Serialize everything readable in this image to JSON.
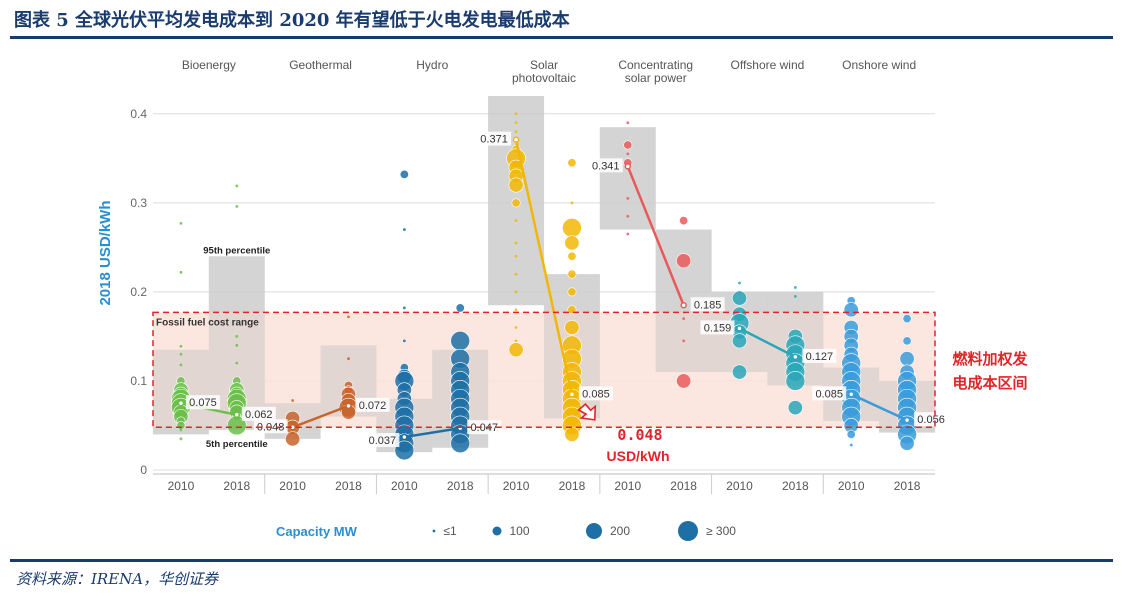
{
  "header": {
    "title": "图表 5   全球光伏平均发电成本到 2020 年有望低于火电发电最低成本"
  },
  "footer": {
    "source": "资料来源：IRENA，华创证券"
  },
  "colors": {
    "bioenergy": "#6cbf4a",
    "geothermal": "#c8642a",
    "hydro": "#1d6fa5",
    "solar_pv": "#f2b705",
    "csp": "#e85a5a",
    "offshore_wind": "#2aa6b8",
    "onshore_wind": "#3a9bd9",
    "range_box": "#c9c9c9",
    "fossil_band": "#fbe3d9",
    "fossil_border": "#e0242a",
    "annotation_red": "#e0242a",
    "axis_label": "#2a8fcf"
  },
  "chart_data": {
    "type": "scatter",
    "ylabel": "2018 USD/kWh",
    "ylim": [
      0,
      0.42
    ],
    "yticks": [
      "0",
      "0.1",
      "0.2",
      "0.3",
      "0.4"
    ],
    "groups": [
      {
        "name": "Bioenergy",
        "color_key": "bioenergy",
        "y2010": {
          "label": "2010",
          "avg": 0.075,
          "p5": 0.04,
          "p95": 0.135,
          "points": [
            {
              "y": 0.277,
              "s": 1
            },
            {
              "y": 0.222,
              "s": 1
            },
            {
              "y": 0.139,
              "s": 1
            },
            {
              "y": 0.13,
              "s": 1
            },
            {
              "y": 0.118,
              "s": 1
            },
            {
              "y": 0.1,
              "s": 2
            },
            {
              "y": 0.09,
              "s": 3
            },
            {
              "y": 0.085,
              "s": 3
            },
            {
              "y": 0.08,
              "s": 4
            },
            {
              "y": 0.075,
              "s": 4
            },
            {
              "y": 0.07,
              "s": 4
            },
            {
              "y": 0.065,
              "s": 3
            },
            {
              "y": 0.06,
              "s": 3
            },
            {
              "y": 0.055,
              "s": 2
            },
            {
              "y": 0.05,
              "s": 2
            },
            {
              "y": 0.045,
              "s": 1
            },
            {
              "y": 0.035,
              "s": 1
            }
          ]
        },
        "y2018": {
          "label": "2018",
          "avg": 0.062,
          "p5": 0.045,
          "p95": 0.24,
          "points": [
            {
              "y": 0.319,
              "s": 1
            },
            {
              "y": 0.296,
              "s": 1
            },
            {
              "y": 0.15,
              "s": 1
            },
            {
              "y": 0.14,
              "s": 1
            },
            {
              "y": 0.12,
              "s": 1
            },
            {
              "y": 0.1,
              "s": 2
            },
            {
              "y": 0.09,
              "s": 3
            },
            {
              "y": 0.085,
              "s": 3
            },
            {
              "y": 0.08,
              "s": 4
            },
            {
              "y": 0.075,
              "s": 4
            },
            {
              "y": 0.07,
              "s": 3
            },
            {
              "y": 0.065,
              "s": 3
            },
            {
              "y": 0.06,
              "s": 2
            },
            {
              "y": 0.05,
              "s": 4
            }
          ]
        },
        "percentile_95_label": "95th percentile",
        "percentile_5_label": "5th percentile"
      },
      {
        "name": "Geothermal",
        "color_key": "geothermal",
        "y2010": {
          "label": "2010",
          "avg": 0.048,
          "p5": 0.035,
          "p95": 0.075,
          "points": [
            {
              "y": 0.078,
              "s": 1
            },
            {
              "y": 0.058,
              "s": 3
            },
            {
              "y": 0.048,
              "s": 3
            },
            {
              "y": 0.035,
              "s": 3
            }
          ]
        },
        "y2018": {
          "label": "2018",
          "avg": 0.072,
          "p5": 0.06,
          "p95": 0.14,
          "points": [
            {
              "y": 0.172,
              "s": 1
            },
            {
              "y": 0.125,
              "s": 1
            },
            {
              "y": 0.095,
              "s": 2
            },
            {
              "y": 0.09,
              "s": 2
            },
            {
              "y": 0.085,
              "s": 3
            },
            {
              "y": 0.078,
              "s": 3
            },
            {
              "y": 0.07,
              "s": 4
            },
            {
              "y": 0.065,
              "s": 3
            }
          ]
        }
      },
      {
        "name": "Hydro",
        "color_key": "hydro",
        "y2010": {
          "label": "2010",
          "avg": 0.037,
          "p5": 0.02,
          "p95": 0.08,
          "points": [
            {
              "y": 0.332,
              "s": 2
            },
            {
              "y": 0.27,
              "s": 1
            },
            {
              "y": 0.182,
              "s": 1
            },
            {
              "y": 0.145,
              "s": 1
            },
            {
              "y": 0.115,
              "s": 2
            },
            {
              "y": 0.105,
              "s": 3
            },
            {
              "y": 0.1,
              "s": 4
            },
            {
              "y": 0.09,
              "s": 3
            },
            {
              "y": 0.08,
              "s": 3
            },
            {
              "y": 0.07,
              "s": 4
            },
            {
              "y": 0.06,
              "s": 4
            },
            {
              "y": 0.05,
              "s": 4
            },
            {
              "y": 0.04,
              "s": 4
            },
            {
              "y": 0.03,
              "s": 4
            },
            {
              "y": 0.022,
              "s": 4
            }
          ]
        },
        "y2018": {
          "label": "2018",
          "avg": 0.047,
          "p5": 0.025,
          "p95": 0.135,
          "points": [
            {
              "y": 0.182,
              "s": 2
            },
            {
              "y": 0.145,
              "s": 4
            },
            {
              "y": 0.125,
              "s": 4
            },
            {
              "y": 0.11,
              "s": 4
            },
            {
              "y": 0.1,
              "s": 4
            },
            {
              "y": 0.09,
              "s": 4
            },
            {
              "y": 0.08,
              "s": 4
            },
            {
              "y": 0.07,
              "s": 4
            },
            {
              "y": 0.06,
              "s": 4
            },
            {
              "y": 0.05,
              "s": 4
            },
            {
              "y": 0.04,
              "s": 4
            },
            {
              "y": 0.03,
              "s": 4
            }
          ]
        }
      },
      {
        "name": "Solar\nphotovoltaic",
        "color_key": "solar_pv",
        "y2010": {
          "label": "2010",
          "avg": 0.371,
          "p5": 0.185,
          "p95": 0.42,
          "points": [
            {
              "y": 0.4,
              "s": 1
            },
            {
              "y": 0.39,
              "s": 1
            },
            {
              "y": 0.38,
              "s": 1
            },
            {
              "y": 0.36,
              "s": 2
            },
            {
              "y": 0.35,
              "s": 4
            },
            {
              "y": 0.34,
              "s": 3
            },
            {
              "y": 0.33,
              "s": 3
            },
            {
              "y": 0.32,
              "s": 3
            },
            {
              "y": 0.3,
              "s": 2
            },
            {
              "y": 0.28,
              "s": 1
            },
            {
              "y": 0.255,
              "s": 1
            },
            {
              "y": 0.24,
              "s": 1
            },
            {
              "y": 0.22,
              "s": 1
            },
            {
              "y": 0.2,
              "s": 1
            },
            {
              "y": 0.18,
              "s": 1
            },
            {
              "y": 0.16,
              "s": 1
            },
            {
              "y": 0.145,
              "s": 1
            },
            {
              "y": 0.135,
              "s": 3
            }
          ]
        },
        "y2018": {
          "label": "2018",
          "avg": 0.085,
          "p5": 0.058,
          "p95": 0.22,
          "points": [
            {
              "y": 0.345,
              "s": 2
            },
            {
              "y": 0.3,
              "s": 1
            },
            {
              "y": 0.272,
              "s": 4
            },
            {
              "y": 0.255,
              "s": 3
            },
            {
              "y": 0.24,
              "s": 2
            },
            {
              "y": 0.22,
              "s": 2
            },
            {
              "y": 0.2,
              "s": 2
            },
            {
              "y": 0.18,
              "s": 2
            },
            {
              "y": 0.16,
              "s": 3
            },
            {
              "y": 0.14,
              "s": 4
            },
            {
              "y": 0.125,
              "s": 4
            },
            {
              "y": 0.11,
              "s": 4
            },
            {
              "y": 0.1,
              "s": 4
            },
            {
              "y": 0.09,
              "s": 4
            },
            {
              "y": 0.08,
              "s": 4
            },
            {
              "y": 0.07,
              "s": 4
            },
            {
              "y": 0.06,
              "s": 4
            },
            {
              "y": 0.05,
              "s": 4
            },
            {
              "y": 0.04,
              "s": 3
            }
          ]
        }
      },
      {
        "name": "Concentrating\nsolar power",
        "color_key": "csp",
        "y2010": {
          "label": "2010",
          "avg": 0.341,
          "p5": 0.27,
          "p95": 0.385,
          "points": [
            {
              "y": 0.39,
              "s": 1
            },
            {
              "y": 0.365,
              "s": 2
            },
            {
              "y": 0.355,
              "s": 1
            },
            {
              "y": 0.345,
              "s": 2
            },
            {
              "y": 0.305,
              "s": 1
            },
            {
              "y": 0.285,
              "s": 1
            },
            {
              "y": 0.265,
              "s": 1
            }
          ]
        },
        "y2018": {
          "label": "2018",
          "avg": 0.185,
          "p5": 0.11,
          "p95": 0.27,
          "points": [
            {
              "y": 0.28,
              "s": 2
            },
            {
              "y": 0.235,
              "s": 3
            },
            {
              "y": 0.185,
              "s": 1
            },
            {
              "y": 0.17,
              "s": 1
            },
            {
              "y": 0.145,
              "s": 1
            },
            {
              "y": 0.1,
              "s": 3
            }
          ]
        }
      },
      {
        "name": "Offshore wind",
        "color_key": "offshore_wind",
        "y2010": {
          "label": "2010",
          "avg": 0.159,
          "p5": 0.11,
          "p95": 0.2,
          "points": [
            {
              "y": 0.21,
              "s": 1
            },
            {
              "y": 0.2,
              "s": 1
            },
            {
              "y": 0.193,
              "s": 3
            },
            {
              "y": 0.175,
              "s": 3
            },
            {
              "y": 0.165,
              "s": 4
            },
            {
              "y": 0.155,
              "s": 3
            },
            {
              "y": 0.145,
              "s": 3
            },
            {
              "y": 0.11,
              "s": 3
            }
          ]
        },
        "y2018": {
          "label": "2018",
          "avg": 0.127,
          "p5": 0.095,
          "p95": 0.2,
          "points": [
            {
              "y": 0.205,
              "s": 1
            },
            {
              "y": 0.195,
              "s": 1
            },
            {
              "y": 0.15,
              "s": 3
            },
            {
              "y": 0.14,
              "s": 4
            },
            {
              "y": 0.13,
              "s": 4
            },
            {
              "y": 0.12,
              "s": 4
            },
            {
              "y": 0.11,
              "s": 4
            },
            {
              "y": 0.1,
              "s": 4
            },
            {
              "y": 0.07,
              "s": 3
            }
          ]
        }
      },
      {
        "name": "Onshore wind",
        "color_key": "onshore_wind",
        "y2010": {
          "label": "2010",
          "avg": 0.085,
          "p5": 0.055,
          "p95": 0.115,
          "points": [
            {
              "y": 0.19,
              "s": 2
            },
            {
              "y": 0.18,
              "s": 3
            },
            {
              "y": 0.16,
              "s": 3
            },
            {
              "y": 0.15,
              "s": 3
            },
            {
              "y": 0.14,
              "s": 3
            },
            {
              "y": 0.13,
              "s": 3
            },
            {
              "y": 0.12,
              "s": 4
            },
            {
              "y": 0.11,
              "s": 4
            },
            {
              "y": 0.1,
              "s": 4
            },
            {
              "y": 0.09,
              "s": 4
            },
            {
              "y": 0.08,
              "s": 4
            },
            {
              "y": 0.07,
              "s": 4
            },
            {
              "y": 0.06,
              "s": 4
            },
            {
              "y": 0.05,
              "s": 3
            },
            {
              "y": 0.04,
              "s": 2
            },
            {
              "y": 0.028,
              "s": 1
            }
          ]
        },
        "y2018": {
          "label": "2018",
          "avg": 0.056,
          "p5": 0.042,
          "p95": 0.1,
          "points": [
            {
              "y": 0.17,
              "s": 2
            },
            {
              "y": 0.145,
              "s": 2
            },
            {
              "y": 0.125,
              "s": 3
            },
            {
              "y": 0.11,
              "s": 3
            },
            {
              "y": 0.1,
              "s": 4
            },
            {
              "y": 0.09,
              "s": 4
            },
            {
              "y": 0.08,
              "s": 4
            },
            {
              "y": 0.07,
              "s": 4
            },
            {
              "y": 0.06,
              "s": 4
            },
            {
              "y": 0.05,
              "s": 4
            },
            {
              "y": 0.04,
              "s": 4
            },
            {
              "y": 0.03,
              "s": 3
            }
          ]
        }
      }
    ],
    "averages": [
      {
        "group": "Bioenergy",
        "year": "2010",
        "value": 0.075,
        "label": "0.075"
      },
      {
        "group": "Bioenergy",
        "year": "2018",
        "value": 0.062,
        "label": "0.062"
      },
      {
        "group": "Geothermal",
        "year": "2010",
        "value": 0.048,
        "label": "0.048"
      },
      {
        "group": "Geothermal",
        "year": "2018",
        "value": 0.072,
        "label": "0.072"
      },
      {
        "group": "Hydro",
        "year": "2010",
        "value": 0.037,
        "label": "0.037"
      },
      {
        "group": "Hydro",
        "year": "2018",
        "value": 0.047,
        "label": "0.047"
      },
      {
        "group": "Solar photovoltaic",
        "year": "2010",
        "value": 0.371,
        "label": "0.371"
      },
      {
        "group": "Solar photovoltaic",
        "year": "2018",
        "value": 0.085,
        "label": "0.085"
      },
      {
        "group": "Concentrating solar power",
        "year": "2010",
        "value": 0.341,
        "label": "0.341"
      },
      {
        "group": "Concentrating solar power",
        "year": "2018",
        "value": 0.185,
        "label": "0.185"
      },
      {
        "group": "Offshore wind",
        "year": "2010",
        "value": 0.159,
        "label": "0.159"
      },
      {
        "group": "Offshore wind",
        "year": "2018",
        "value": 0.127,
        "label": "0.127"
      },
      {
        "group": "Onshore wind",
        "year": "2010",
        "value": 0.085,
        "label": "0.085"
      },
      {
        "group": "Onshore wind",
        "year": "2018",
        "value": 0.056,
        "label": "0.056"
      }
    ],
    "fossil_fuel_range": {
      "label": "Fossil fuel cost range",
      "low": 0.048,
      "high": 0.177
    },
    "annotations": {
      "fossil_band_note": "燃料加权发电成本区间",
      "pv_target_value": "0.048",
      "pv_target_unit": "USD/kWh"
    },
    "legend": {
      "title": "Capacity MW",
      "items": [
        "≤1",
        "100",
        "200",
        "≥ 300"
      ]
    }
  }
}
